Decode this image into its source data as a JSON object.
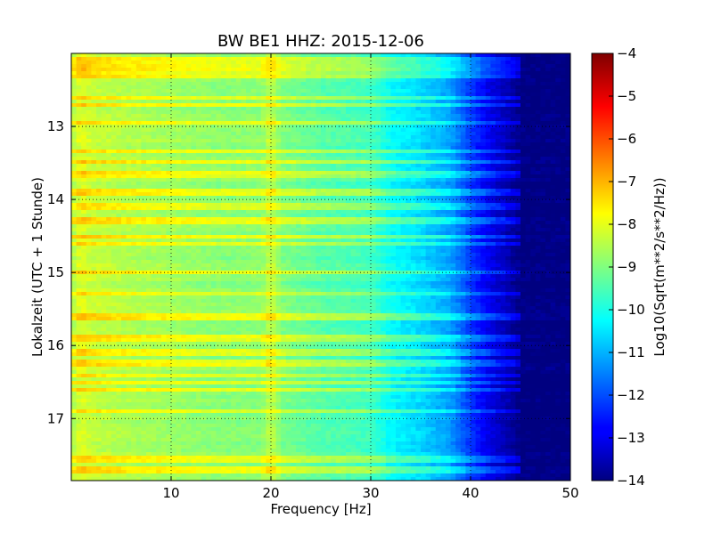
{
  "chart_data": {
    "type": "heatmap",
    "title": "BW BE1 HHZ: 2015-12-06",
    "xlabel": "Frequency [Hz]",
    "ylabel": "Lokalzeit (UTC + 1 Stunde)",
    "xlim": [
      0,
      50
    ],
    "ylim": [
      17.85,
      12.0
    ],
    "x_ticks": [
      10,
      20,
      30,
      40,
      50
    ],
    "x_tick_labels": [
      "10",
      "20",
      "30",
      "40",
      "50"
    ],
    "y_ticks": [
      13,
      14,
      15,
      16,
      17
    ],
    "y_tick_labels": [
      "13",
      "14",
      "15",
      "16",
      "17"
    ],
    "grid": true,
    "grid_style": "dotted",
    "colormap": "jet",
    "colorbar": {
      "label": "Log10(Sqrt(m**2/s**2/Hz))",
      "range": [
        -14,
        -4
      ],
      "ticks": [
        -4,
        -5,
        -6,
        -7,
        -8,
        -9,
        -10,
        -11,
        -12,
        -13,
        -14
      ],
      "tick_labels": [
        "−4",
        "−5",
        "−6",
        "−7",
        "−8",
        "−9",
        "−10",
        "−11",
        "−12",
        "−13",
        "−14"
      ]
    },
    "spectral_profile": {
      "frequency_hz": [
        0,
        1,
        2,
        5,
        10,
        15,
        19,
        20,
        21,
        25,
        30,
        32,
        35,
        38,
        40,
        42,
        44,
        45,
        50
      ],
      "log10_amplitude": [
        -8.6,
        -8.0,
        -8.3,
        -8.5,
        -8.7,
        -8.9,
        -8.9,
        -8.3,
        -9.0,
        -9.4,
        -9.6,
        -10.2,
        -10.6,
        -11.2,
        -12.2,
        -13.0,
        -13.6,
        -14.0,
        -14.0
      ]
    },
    "band_times_hour": [
      12.1,
      12.2,
      12.3,
      12.6,
      12.7,
      12.95,
      13.35,
      13.5,
      13.65,
      13.9,
      14.1,
      14.3,
      14.5,
      14.6,
      15.0,
      15.3,
      15.6,
      15.9,
      16.1,
      16.25,
      16.4,
      16.5,
      16.6,
      16.9,
      17.55,
      17.7
    ]
  }
}
